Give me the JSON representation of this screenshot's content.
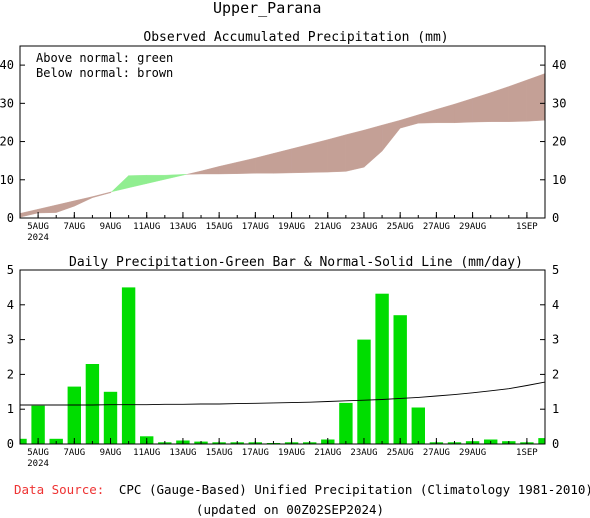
{
  "title": "Upper_Parana",
  "colors": {
    "above": "#90ee90",
    "below": "#c4a096",
    "bar": "#00dd00",
    "source_label": "#ee3333"
  },
  "chart_data": [
    {
      "type": "area",
      "title": "Observed Accumulated Precipitation (mm)",
      "legend_lines": [
        "Above normal: green",
        "Below normal: brown"
      ],
      "x_tick_labels": [
        "5AUG",
        "7AUG",
        "9AUG",
        "11AUG",
        "13AUG",
        "15AUG",
        "17AUG",
        "19AUG",
        "21AUG",
        "23AUG",
        "25AUG",
        "27AUG",
        "29AUG",
        "1SEP"
      ],
      "x_tick_days": [
        5,
        7,
        9,
        11,
        13,
        15,
        17,
        19,
        21,
        23,
        25,
        27,
        29,
        32
      ],
      "year_label": "2024",
      "x_range_days": [
        4,
        33
      ],
      "ylim": [
        0,
        45
      ],
      "y_ticks": [
        0,
        10,
        20,
        30,
        40
      ],
      "x_days": [
        4,
        5,
        6,
        7,
        8,
        9,
        10,
        11,
        12,
        13,
        14,
        15,
        16,
        17,
        18,
        19,
        20,
        21,
        22,
        23,
        24,
        25,
        26,
        27,
        28,
        29,
        30,
        31,
        32,
        33
      ],
      "series": [
        {
          "role": "observed",
          "values": [
            0.2,
            1.3,
            1.4,
            3.1,
            5.3,
            6.6,
            11.1,
            11.2,
            11.2,
            11.4,
            11.5,
            11.5,
            11.6,
            11.7,
            11.7,
            11.8,
            11.9,
            12.0,
            12.2,
            13.3,
            17.5,
            23.5,
            24.8,
            24.9,
            24.9,
            25.1,
            25.2,
            25.2,
            25.3,
            25.6
          ]
        },
        {
          "role": "normal",
          "values": [
            1.2,
            2.3,
            3.4,
            4.5,
            5.6,
            6.8,
            7.9,
            9.0,
            10.1,
            11.2,
            12.3,
            13.5,
            14.6,
            15.7,
            16.9,
            18.1,
            19.3,
            20.5,
            21.8,
            23.0,
            24.3,
            25.6,
            27.0,
            28.4,
            29.8,
            31.3,
            32.8,
            34.4,
            36.1,
            37.8
          ]
        }
      ]
    },
    {
      "type": "bar",
      "title": "Daily Precipitation-Green Bar & Normal-Solid Line (mm/day)",
      "x_tick_labels": [
        "5AUG",
        "7AUG",
        "9AUG",
        "11AUG",
        "13AUG",
        "15AUG",
        "17AUG",
        "19AUG",
        "21AUG",
        "23AUG",
        "25AUG",
        "27AUG",
        "29AUG",
        "1SEP"
      ],
      "x_tick_days": [
        5,
        7,
        9,
        11,
        13,
        15,
        17,
        19,
        21,
        23,
        25,
        27,
        29,
        32
      ],
      "year_label": "2024",
      "x_range_days": [
        4,
        33
      ],
      "ylim": [
        0,
        5
      ],
      "y_ticks": [
        0,
        1,
        2,
        3,
        4,
        5
      ],
      "x_days": [
        4,
        5,
        6,
        7,
        8,
        9,
        10,
        11,
        12,
        13,
        14,
        15,
        16,
        17,
        18,
        19,
        20,
        21,
        22,
        23,
        24,
        25,
        26,
        27,
        28,
        29,
        30,
        31,
        32,
        33
      ],
      "series": [
        {
          "role": "daily",
          "values": [
            0.15,
            1.1,
            0.15,
            1.65,
            2.3,
            1.5,
            4.5,
            0.22,
            0.05,
            0.1,
            0.07,
            0.05,
            0.05,
            0.05,
            0.03,
            0.05,
            0.05,
            0.13,
            1.18,
            3.0,
            4.32,
            3.7,
            1.05,
            0.05,
            0.05,
            0.08,
            0.13,
            0.08,
            0.05,
            0.17
          ]
        },
        {
          "role": "normal",
          "values": [
            1.12,
            1.12,
            1.12,
            1.12,
            1.12,
            1.13,
            1.13,
            1.13,
            1.14,
            1.14,
            1.15,
            1.15,
            1.16,
            1.17,
            1.18,
            1.19,
            1.2,
            1.22,
            1.24,
            1.26,
            1.28,
            1.31,
            1.34,
            1.38,
            1.42,
            1.47,
            1.53,
            1.59,
            1.68,
            1.78
          ]
        }
      ]
    }
  ],
  "footer": {
    "source_label": "Data Source:",
    "source_text": "CPC (Gauge-Based) Unified Precipitation (Climatology 1981-2010)",
    "updated_text": "(updated on 00Z02SEP2024)"
  }
}
